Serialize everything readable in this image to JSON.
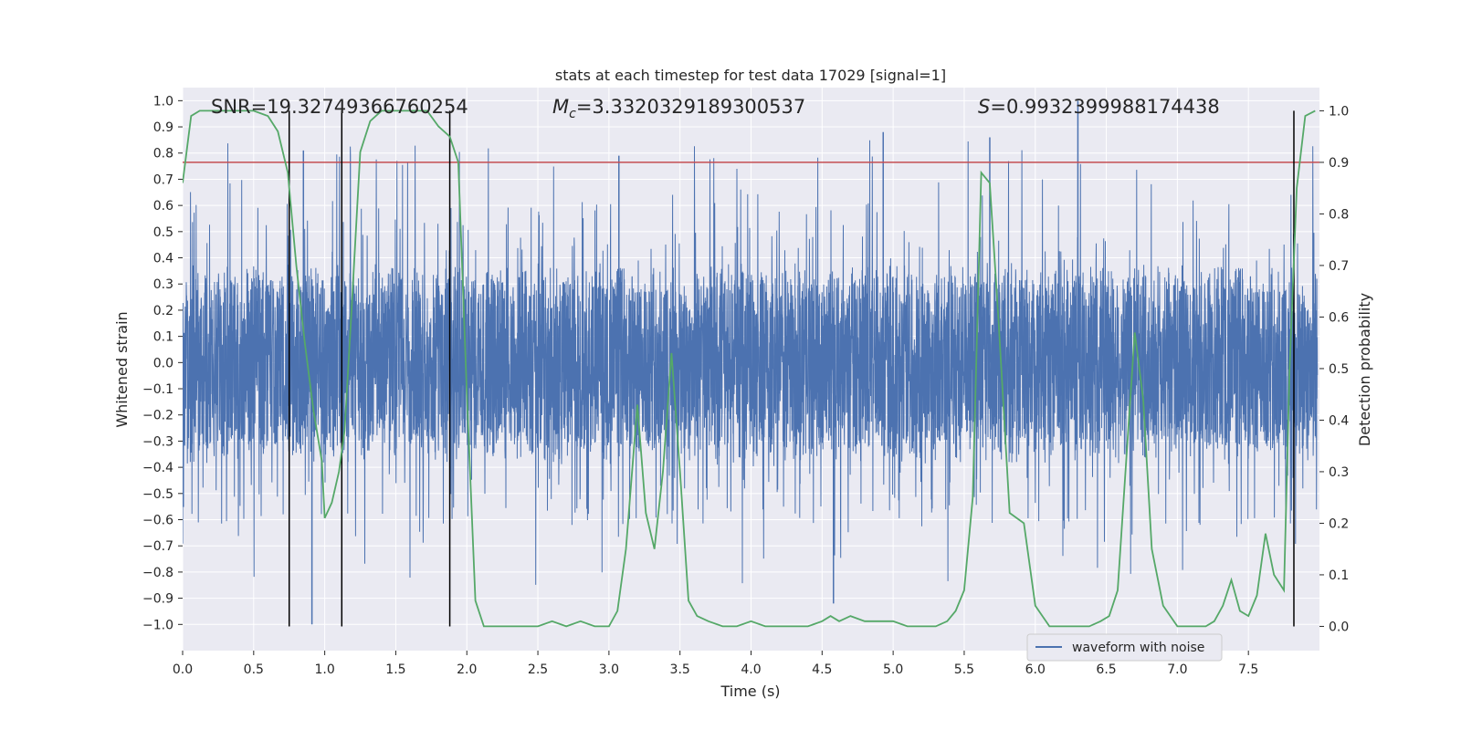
{
  "chart_data": {
    "type": "line",
    "title": "stats at each timestep for test data 17029 [signal=1]",
    "xlabel": "Time (s)",
    "ylabel": "Whitened strain",
    "y2label": "Detection probability",
    "xlim": [
      0.0,
      8.0
    ],
    "ylim": [
      -1.1,
      1.05
    ],
    "y2lim": [
      -0.047,
      1.045
    ],
    "x_ticks": [
      "0.0",
      "0.5",
      "1.0",
      "1.5",
      "2.0",
      "2.5",
      "3.0",
      "3.5",
      "4.0",
      "4.5",
      "5.0",
      "5.5",
      "6.0",
      "6.5",
      "7.0",
      "7.5"
    ],
    "y_ticks": [
      "1.0",
      "0.9",
      "0.8",
      "0.7",
      "0.6",
      "0.5",
      "0.4",
      "0.3",
      "0.2",
      "0.1",
      "0.0",
      "−0.1",
      "−0.2",
      "−0.3",
      "−0.4",
      "−0.5",
      "−0.6",
      "−0.7",
      "−0.8",
      "−0.9",
      "−1.0"
    ],
    "y2_ticks": [
      "1.0",
      "0.9",
      "0.8",
      "0.7",
      "0.6",
      "0.5",
      "0.4",
      "0.3",
      "0.2",
      "0.1",
      "0.0"
    ],
    "annotations": {
      "snr": "SNR=19.32749366760254",
      "mc_symbol": "M",
      "mc_sub": "c",
      "mc_value": "=3.3320329189300537",
      "s_symbol": "S",
      "s_value": "=0.9932399988174438"
    },
    "legend": {
      "entries": [
        "waveform with noise"
      ],
      "placement": "lower-right"
    },
    "threshold": {
      "value": 0.9,
      "color": "#c44e52"
    },
    "event_lines_x": [
      0.75,
      1.12,
      1.88,
      7.82
    ],
    "waveform": {
      "name": "waveform with noise",
      "color": "#4c72b0",
      "envelope_abs": 0.4,
      "peak_abs": 1.0
    },
    "probability": {
      "color": "#55a868",
      "x": [
        0.0,
        0.06,
        0.12,
        0.2,
        0.3,
        0.4,
        0.5,
        0.6,
        0.67,
        0.74,
        0.8,
        0.86,
        0.92,
        0.98,
        1.0,
        1.05,
        1.1,
        1.14,
        1.19,
        1.25,
        1.32,
        1.4,
        1.5,
        1.6,
        1.72,
        1.8,
        1.88,
        1.94,
        2.0,
        2.06,
        2.12,
        2.2,
        2.3,
        2.4,
        2.5,
        2.6,
        2.7,
        2.8,
        2.9,
        3.0,
        3.06,
        3.12,
        3.2,
        3.26,
        3.32,
        3.38,
        3.44,
        3.5,
        3.56,
        3.62,
        3.7,
        3.8,
        3.9,
        4.0,
        4.1,
        4.2,
        4.3,
        4.4,
        4.5,
        4.56,
        4.62,
        4.7,
        4.8,
        4.9,
        5.0,
        5.1,
        5.2,
        5.3,
        5.38,
        5.44,
        5.5,
        5.56,
        5.62,
        5.68,
        5.74,
        5.82,
        5.92,
        6.0,
        6.1,
        6.2,
        6.3,
        6.38,
        6.46,
        6.52,
        6.58,
        6.64,
        6.7,
        6.76,
        6.82,
        6.9,
        7.0,
        7.1,
        7.2,
        7.26,
        7.32,
        7.38,
        7.44,
        7.5,
        7.56,
        7.62,
        7.68,
        7.75,
        7.79,
        7.84,
        7.9,
        7.97
      ],
      "y": [
        0.86,
        0.99,
        1.0,
        1.0,
        1.0,
        1.0,
        1.0,
        0.99,
        0.96,
        0.88,
        0.7,
        0.55,
        0.42,
        0.32,
        0.21,
        0.24,
        0.3,
        0.38,
        0.62,
        0.92,
        0.98,
        1.0,
        1.0,
        1.0,
        1.0,
        0.97,
        0.95,
        0.9,
        0.45,
        0.05,
        0.0,
        0.0,
        0.0,
        0.0,
        0.0,
        0.01,
        0.0,
        0.01,
        0.0,
        0.0,
        0.03,
        0.15,
        0.43,
        0.22,
        0.15,
        0.3,
        0.53,
        0.3,
        0.05,
        0.02,
        0.01,
        0.0,
        0.0,
        0.01,
        0.0,
        0.0,
        0.0,
        0.0,
        0.01,
        0.02,
        0.01,
        0.02,
        0.01,
        0.01,
        0.01,
        0.0,
        0.0,
        0.0,
        0.01,
        0.03,
        0.07,
        0.25,
        0.88,
        0.86,
        0.6,
        0.22,
        0.2,
        0.04,
        0.0,
        0.0,
        0.0,
        0.0,
        0.01,
        0.02,
        0.07,
        0.32,
        0.57,
        0.44,
        0.15,
        0.04,
        0.0,
        0.0,
        0.0,
        0.01,
        0.04,
        0.09,
        0.03,
        0.02,
        0.06,
        0.18,
        0.1,
        0.07,
        0.5,
        0.85,
        0.99,
        1.0
      ]
    }
  }
}
